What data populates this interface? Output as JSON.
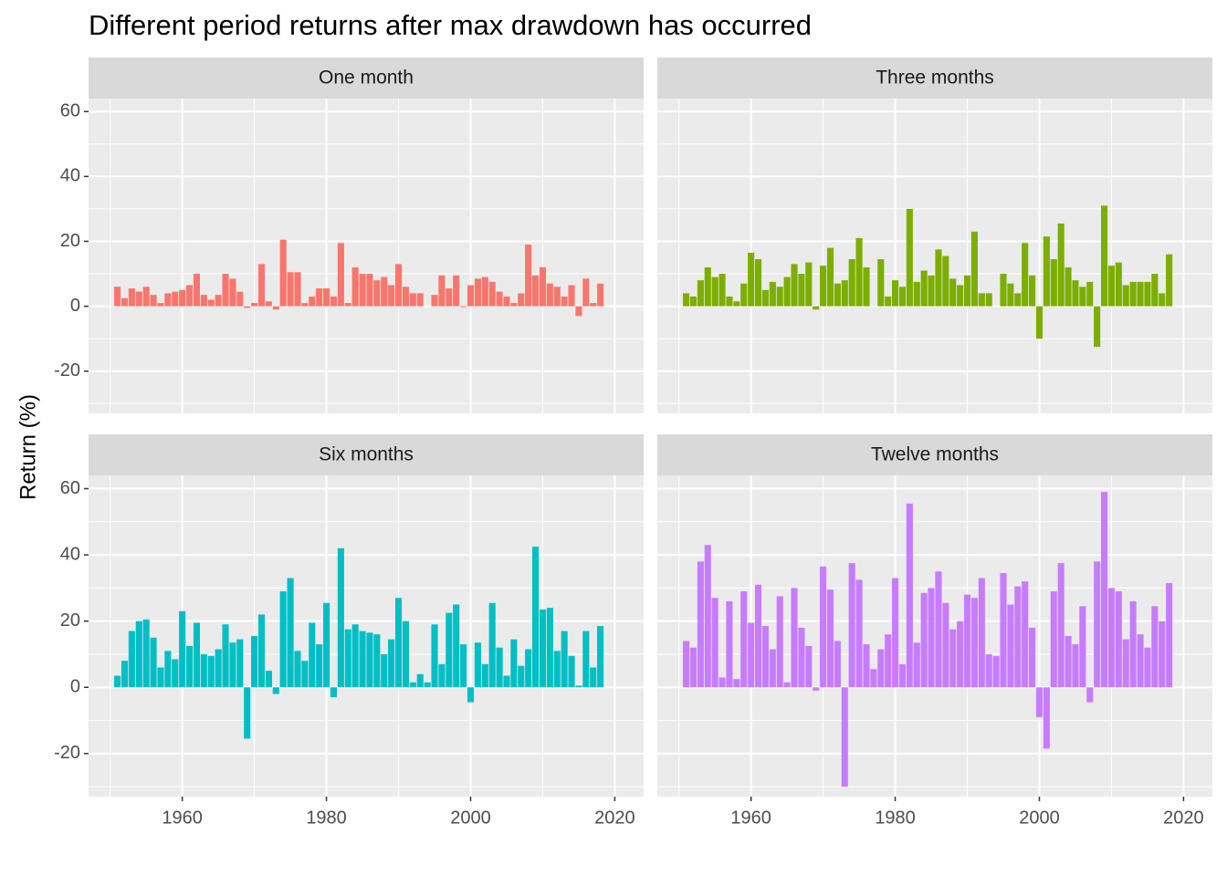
{
  "chart_data": {
    "type": "bar",
    "title": "Different period returns after max drawdown has occurred",
    "ylabel": "Return (%)",
    "x": [
      1951,
      1952,
      1953,
      1954,
      1955,
      1956,
      1957,
      1958,
      1959,
      1960,
      1961,
      1962,
      1963,
      1964,
      1965,
      1966,
      1967,
      1968,
      1969,
      1970,
      1971,
      1972,
      1973,
      1974,
      1975,
      1976,
      1977,
      1978,
      1979,
      1980,
      1981,
      1982,
      1983,
      1984,
      1985,
      1986,
      1987,
      1988,
      1989,
      1990,
      1991,
      1992,
      1993,
      1994,
      1995,
      1996,
      1997,
      1998,
      1999,
      2000,
      2001,
      2002,
      2003,
      2004,
      2005,
      2006,
      2007,
      2008,
      2009,
      2010,
      2011,
      2012,
      2013,
      2014,
      2015,
      2016,
      2017,
      2018
    ],
    "xlim": [
      1947,
      2024
    ],
    "xticks": [
      1960,
      1980,
      2000,
      2020
    ],
    "ylim": [
      -33,
      64
    ],
    "yticks": [
      -20,
      0,
      20,
      40,
      60
    ],
    "grid": true,
    "series": [
      {
        "name": "One month",
        "color": "#F8766D",
        "values": [
          6,
          2.5,
          5.5,
          4.5,
          6,
          3.5,
          1,
          4,
          4.5,
          5,
          6.5,
          10,
          3.5,
          2,
          3.5,
          10,
          8.5,
          4.5,
          -0.5,
          1,
          13,
          1.5,
          -1,
          20.5,
          10.5,
          10.5,
          1,
          3,
          5.5,
          5.5,
          3,
          19.5,
          1,
          12,
          10,
          10,
          8,
          9,
          6.5,
          13,
          6,
          4,
          4,
          0,
          3.5,
          9.5,
          5.5,
          9.5,
          -0.3,
          6.5,
          8.5,
          9,
          7.5,
          4.5,
          3,
          1,
          4,
          19,
          9.5,
          12,
          7,
          6,
          3,
          6.5,
          -3,
          8.5,
          1,
          7
        ]
      },
      {
        "name": "Three months",
        "color": "#7CAE00",
        "values": [
          4,
          3,
          8,
          12,
          9,
          10,
          3,
          1.5,
          7,
          16.5,
          14.5,
          5,
          7.5,
          6,
          9,
          13,
          10,
          13.5,
          -1,
          12.5,
          18,
          7,
          8,
          14.5,
          21,
          12,
          0,
          14.5,
          3,
          8,
          6,
          30,
          7.5,
          11,
          9.5,
          17.5,
          15.5,
          8.5,
          6.5,
          9.5,
          23,
          4,
          4,
          0,
          10,
          7,
          4,
          19.5,
          9.5,
          -10,
          21.5,
          14.5,
          25.5,
          12,
          8,
          6,
          7.5,
          -12.5,
          31,
          12.5,
          13.5,
          6.5,
          7.5,
          7.5,
          7.5,
          10,
          4,
          16
        ]
      },
      {
        "name": "Six months",
        "color": "#00BFC4",
        "values": [
          3.5,
          8,
          17,
          20,
          20.5,
          15,
          6,
          11,
          8.5,
          23,
          12.5,
          19.5,
          10,
          9.5,
          11.5,
          19,
          13.5,
          14.5,
          -15.5,
          15.5,
          22,
          5,
          -2,
          29,
          33,
          11,
          8,
          19.5,
          13,
          25.5,
          -3,
          42,
          17.5,
          19,
          17,
          16.5,
          16,
          10,
          14.5,
          27,
          20,
          1.5,
          4,
          1.5,
          19,
          7,
          22.5,
          25,
          13,
          -4.5,
          13.5,
          7,
          25.5,
          12,
          3.5,
          14.5,
          6.5,
          11.5,
          42.5,
          23.5,
          24,
          11,
          17,
          9.5,
          0.5,
          17,
          6,
          18.5
        ]
      },
      {
        "name": "Twelve months",
        "color": "#C77CFF",
        "values": [
          14,
          12,
          38,
          43,
          27,
          3,
          26,
          2.5,
          29,
          19.5,
          31,
          18.5,
          11.5,
          27.5,
          1.5,
          30,
          18,
          12.5,
          -1,
          36.5,
          29.5,
          14,
          -30,
          37.5,
          32.5,
          13,
          5.5,
          11.5,
          16,
          33,
          7,
          55.5,
          13.5,
          28.5,
          30,
          35,
          25.5,
          17.5,
          20,
          28,
          27,
          33,
          10,
          9.5,
          34.5,
          25,
          30.5,
          32,
          18,
          -9,
          -18.5,
          29,
          37.5,
          15.5,
          13,
          24.5,
          -4.5,
          38,
          59,
          30,
          29,
          14.5,
          26,
          16,
          12,
          24.5,
          20,
          31.5
        ]
      }
    ]
  }
}
